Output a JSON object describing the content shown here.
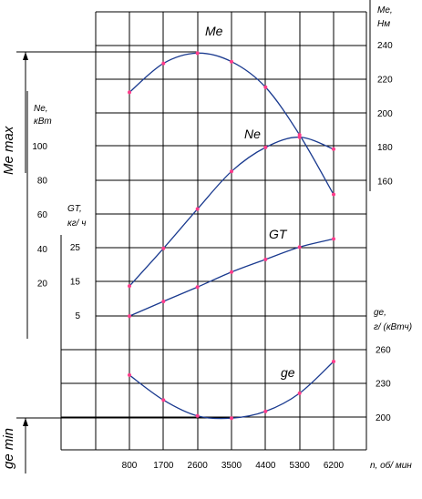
{
  "chart_data": {
    "type": "line",
    "x": [
      800,
      1700,
      2600,
      3500,
      4400,
      5300,
      6200
    ],
    "xlabel": "n, об/ мин",
    "x_tick_labels": [
      "800",
      "1700",
      "2600",
      "3500",
      "4400",
      "5300",
      "6200"
    ],
    "series": [
      {
        "name": "Me",
        "axis": "Mе, Нм",
        "values": [
          212,
          229,
          235,
          230,
          215,
          187,
          152
        ],
        "ticks": [
          "240",
          "220",
          "200",
          "180",
          "160"
        ]
      },
      {
        "name": "Ne",
        "axis": "Nе, кВт",
        "values": [
          18,
          40,
          63,
          85,
          99,
          105,
          98
        ],
        "ticks": [
          "100",
          "80",
          "60",
          "40",
          "20"
        ]
      },
      {
        "name": "GT",
        "axis": "GТ, кг/ ч",
        "values": [
          4.7,
          9.0,
          13.2,
          17.6,
          21.3,
          24.9,
          27.3
        ],
        "ticks": [
          "25",
          "15",
          "5"
        ]
      },
      {
        "name": "ge",
        "axis": "gе, г/ (кВтч)",
        "values": [
          237,
          215,
          201,
          199,
          205,
          221,
          249
        ],
        "ticks": [
          "260",
          "230",
          "200"
        ]
      }
    ],
    "left_marks": [
      "Mе max",
      "gе min"
    ],
    "grid": true
  },
  "labels": {
    "me_curve": "Me",
    "ne_curve": "Ne",
    "gt_curve": "GT",
    "ge_curve": "ge",
    "me_axis_sym": "Mе,",
    "me_axis_unit": "Нм",
    "ne_axis_sym": "Nе,",
    "ne_axis_unit": "кВт",
    "gt_axis_sym": "GТ,",
    "gt_axis_unit": "кг/ ч",
    "ge_axis_sym": "gе,",
    "ge_axis_unit": "г/ (кВтч)",
    "me_max": "Mе max",
    "ge_min": "gе min",
    "x_unit": "n, об/ мин"
  }
}
